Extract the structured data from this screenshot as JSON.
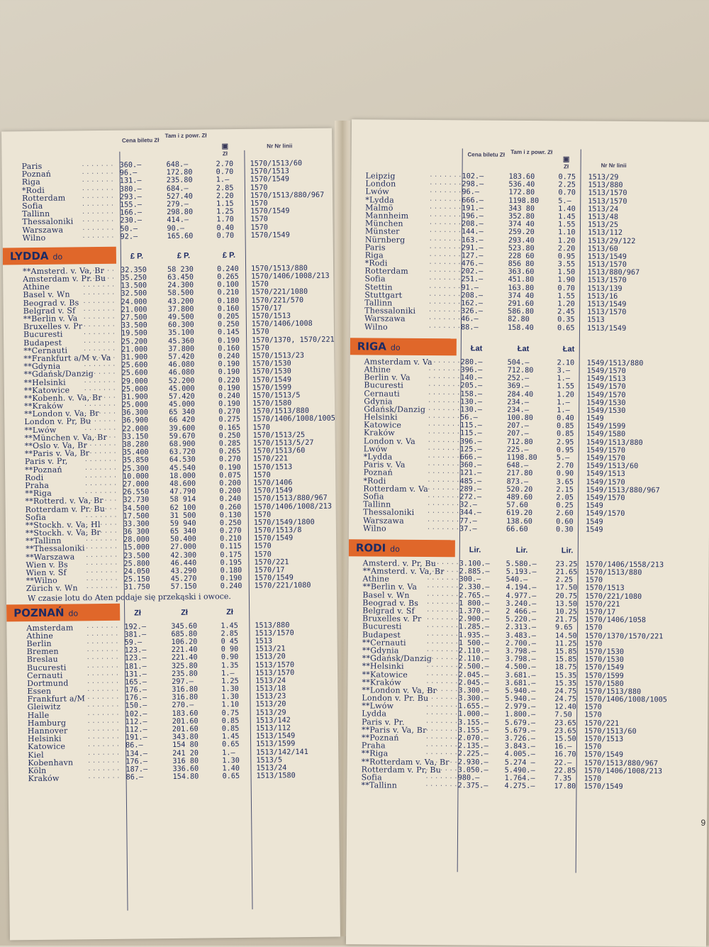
{
  "headers": {
    "price": "Cena biletu Zł",
    "round": "Tam i z powr. Zł",
    "bag": "Zł",
    "lines": "Nr Nr linii"
  },
  "note": "W czasie lotu do Aten podaje się przekąski i owoce.",
  "page_number": "9",
  "left_top": [
    [
      "Paris",
      "360.—",
      "648.—",
      "2.70",
      "1570/1513/60"
    ],
    [
      "Poznań",
      "96.—",
      "172.80",
      "0.70",
      "1570/1513"
    ],
    [
      "Riga",
      "131.—",
      "235.80",
      "1.—",
      "1570/1549"
    ],
    [
      "*Rodi",
      "380.—",
      "684.—",
      "2.85",
      "1570"
    ],
    [
      "Rotterdam",
      "293.—",
      "527.40",
      "2.20",
      "1570/1513/880/967"
    ],
    [
      "Sofia",
      "155.—",
      "279.—",
      "1.15",
      "1570"
    ],
    [
      "Tallinn",
      "166.—",
      "298.80",
      "1.25",
      "1570/1549"
    ],
    [
      "Thessaloniki",
      "230.—",
      "414.—",
      "1.70",
      "1570"
    ],
    [
      "Warszawa",
      "50.—",
      "90.—",
      "0.40",
      "1570"
    ],
    [
      "Wilno",
      "92.—",
      "165.60",
      "0.70",
      "1570/1549"
    ]
  ],
  "lydda": {
    "title": "LYDDA",
    "do": "do",
    "cur": [
      "£ P.",
      "£ P.",
      "£ P."
    ],
    "rows": [
      [
        "**Amsterd. v. Va, Br",
        "32.350",
        "58 230",
        "0.240",
        "1570/1513/880"
      ],
      [
        "Amsterdam v. Pr. Bu",
        "35.250",
        "63.450",
        "0.265",
        "1570/1406/1008/213"
      ],
      [
        "Athine",
        "13.500",
        "24.300",
        "0.100",
        "1570"
      ],
      [
        "Basel v. Wn",
        "32.500",
        "58.500",
        "0.210",
        "1570/221/1080"
      ],
      [
        "Beograd v. Bs",
        "24.000",
        "43.200",
        "0.180",
        "1570/221/570"
      ],
      [
        "Belgrad v. Sf",
        "21.000",
        "37.800",
        "0.160",
        "1570/17"
      ],
      [
        "**Berlin v. Va",
        "27.500",
        "49.500",
        "0.205",
        "1570/1513"
      ],
      [
        "Bruxelles v. Pr",
        "33.500",
        "60.300",
        "0.250",
        "1570/1406/1008"
      ],
      [
        "Bucuresti",
        "19.500",
        "35.100",
        "0.145",
        "1570"
      ],
      [
        "Budapest",
        "25.200",
        "45.360",
        "0.190",
        "1570/1370, 1570/221"
      ],
      [
        "**Cernauti",
        "21.000",
        "37.800",
        "0.160",
        "1570"
      ],
      [
        "**Frankfurt a/M v. Va",
        "31.900",
        "57.420",
        "0.240",
        "1570/1513/23"
      ],
      [
        "**Gdynia",
        "25.600",
        "46.080",
        "0.190",
        "1570/1530"
      ],
      [
        "**Gdańsk/Danzig",
        "25.600",
        "46.080",
        "0.190",
        "1570/1530"
      ],
      [
        "**Helsinki",
        "29.000",
        "52.200",
        "0.220",
        "1570/1549"
      ],
      [
        "**Katowice",
        "25.000",
        "45.000",
        "0.190",
        "1570/1599"
      ],
      [
        "**Kobenh. v. Va, Br",
        "31.900",
        "57.420",
        "0.240",
        "1570/1513/5"
      ],
      [
        "**Kraków",
        "25.000",
        "45.000",
        "0.190",
        "1570/1580"
      ],
      [
        "**London v. Va, Br",
        "36.300",
        "65 340",
        "0.270",
        "1570/1513/880"
      ],
      [
        "London v. Pr, Bu",
        "36.900",
        "66 420",
        "0.275",
        "1570/1406/1008/1005"
      ],
      [
        "**Lwów",
        "22.000",
        "39.600",
        "0.165",
        "1570"
      ],
      [
        "**München v. Va, Br",
        "33.150",
        "59.670",
        "0.250",
        "1570/1513/25"
      ],
      [
        "**Oslo v. Va, Br",
        "38.280",
        "68.900",
        "0.285",
        "1570/1513/5/27"
      ],
      [
        "**Paris v. Va, Br",
        "35.400",
        "63.720",
        "0.265",
        "1570/1513/60"
      ],
      [
        "Paris v. Pr,",
        "35.850",
        "64.530",
        "0.270",
        "1570/221"
      ],
      [
        "**Poznań",
        "25.300",
        "45.540",
        "0.190",
        "1570/1513"
      ],
      [
        "Rodi",
        "10.000",
        "18.000",
        "0.075",
        "1570"
      ],
      [
        "Praha",
        "27.000",
        "48.600",
        "0.200",
        "1570/1406"
      ],
      [
        "**Riga",
        "26.550",
        "47.790",
        "0.200",
        "1570/1549"
      ],
      [
        "**Rotterd. v. Va, Br",
        "32.730",
        "58 914",
        "0.240",
        "1570/1513/880/967"
      ],
      [
        "Rotterdam v. Pr. Bu",
        "34.500",
        "62 100",
        "0.260",
        "1570/1406/1008/213"
      ],
      [
        "Sofia",
        "17.500",
        "31 500",
        "0.130",
        "1570"
      ],
      [
        "**Stockh. v. Va, Hl",
        "33.300",
        "59 940",
        "0.250",
        "1570/1549/1800"
      ],
      [
        "**Stockh. v. Va, Br",
        "36 300",
        "65 340",
        "0.270",
        "1570/1513/8"
      ],
      [
        "**Tallinn",
        "28.000",
        "50.400",
        "0.210",
        "1570/1549"
      ],
      [
        "**Thessaloniki",
        "15.000",
        "27.000",
        "0.115",
        "1570"
      ],
      [
        "**Warszawa",
        "23.500",
        "42.300",
        "0.175",
        "1570"
      ],
      [
        "Wien v. Bs",
        "25.800",
        "46.440",
        "0.195",
        "1570/221"
      ],
      [
        "Wien v. Sf",
        "24.050",
        "43.290",
        "0.180",
        "1570/17"
      ],
      [
        "**Wilno",
        "25.150",
        "45.270",
        "0.190",
        "1570/1549"
      ],
      [
        "Zürich v. Wn",
        "31.750",
        "57.150",
        "0.240",
        "1570/221/1080"
      ]
    ]
  },
  "poznan": {
    "title": "POZNAŃ",
    "do": "do",
    "cur": [
      "Zł",
      "Zł",
      "Zł"
    ],
    "rows": [
      [
        "Amsterdam",
        "192.—",
        "345.60",
        "1.45",
        "1513/880"
      ],
      [
        "Athine",
        "381.—",
        "685.80",
        "2.85",
        "1513/1570"
      ],
      [
        "Berlin",
        "59.—",
        "106.20",
        "0 45",
        "1513"
      ],
      [
        "Bremen",
        "123.—",
        "221.40",
        "0 90",
        "1513/21"
      ],
      [
        "Breslau",
        "123.—",
        "221.40",
        "0.90",
        "1513/20"
      ],
      [
        "Bucuresti",
        "181.—",
        "325.80",
        "1.35",
        "1513/1570"
      ],
      [
        "Cernauti",
        "131.—",
        "235.80",
        "1.—",
        "1513/1570"
      ],
      [
        "Dortmund",
        "165.—",
        "297.—",
        "1.25",
        "1513/24"
      ],
      [
        "Essen",
        "176.—",
        "316.80",
        "1.30",
        "1513/18"
      ],
      [
        "Frankfurt a/M",
        "176.—",
        "316.80",
        "1.30",
        "1513/23"
      ],
      [
        "Gleiwitz",
        "150.—",
        "270.—",
        "1.10",
        "1513/20"
      ],
      [
        "Halle",
        "102.—",
        "183.60",
        "0.75",
        "1513/29"
      ],
      [
        "Hamburg",
        "112.—",
        "201.60",
        "0.85",
        "1513/142"
      ],
      [
        "Hannover",
        "112.—",
        "201.60",
        "0.85",
        "1513/112"
      ],
      [
        "Helsinki",
        "191.—",
        "343.80",
        "1.45",
        "1513/1549"
      ],
      [
        "Katowice",
        "86.—",
        "154 80",
        "0.65",
        "1513/1599"
      ],
      [
        "Kiel",
        "134.—",
        "241 20",
        "1.—",
        "1513/142/141"
      ],
      [
        "Kobenhavn",
        "176.—",
        "316 80",
        "1.30",
        "1513/5"
      ],
      [
        "Köln",
        "187.—",
        "336.60",
        "1.40",
        "1513/24"
      ],
      [
        "Kraków",
        "86.—",
        "154.80",
        "0.65",
        "1513/1580"
      ]
    ]
  },
  "right_top": [
    [
      "Leipzig",
      "102.—",
      "183.60",
      "0.75",
      "1513/29"
    ],
    [
      "London",
      "298.—",
      "536.40",
      "2.25",
      "1513/880"
    ],
    [
      "Lwów",
      "96.—",
      "172.80",
      "0.70",
      "1513/1570"
    ],
    [
      "*Lydda",
      "666.—",
      "1198.80",
      "5.—",
      "1513/1570"
    ],
    [
      "Malmö",
      "191.—",
      "343 80",
      "1.40",
      "1513/24"
    ],
    [
      "Mannheim",
      "196.—",
      "352.80",
      "1.45",
      "1513/48"
    ],
    [
      "München",
      "208.—",
      "374 40",
      "1.55",
      "1513/25"
    ],
    [
      "Münster",
      "144.—",
      "259.20",
      "1.10",
      "1513/112"
    ],
    [
      "Nürnberg",
      "163.—",
      "293.40",
      "1.20",
      "1513/29/122"
    ],
    [
      "Paris",
      "291.—",
      "523.80",
      "2.20",
      "1513/60"
    ],
    [
      "Riga",
      "127.—",
      "228 60",
      "0.95",
      "1513/1549"
    ],
    [
      "*Rodi",
      "476.—",
      "856 80",
      "3.55",
      "1513/1570"
    ],
    [
      "Rotterdam",
      "202.—",
      "363.60",
      "1.50",
      "1513/880/967"
    ],
    [
      "Sofia",
      "251.—",
      "451.80",
      "1.90",
      "1513/1570"
    ],
    [
      "Stettin",
      "91.—",
      "163.80",
      "0.70",
      "1513/139"
    ],
    [
      "Stuttgart",
      "208.—",
      "374 40",
      "1.55",
      "1513/16"
    ],
    [
      "Tallinn",
      "162.—",
      "291.60",
      "1.20",
      "1513/1549"
    ],
    [
      "Thessaloniki",
      "326.—",
      "586.80",
      "2.45",
      "1513/1570"
    ],
    [
      "Warszawa",
      "46.—",
      "82.80",
      "0.35",
      "1513"
    ],
    [
      "Wilno",
      "88.—",
      "158.40",
      "0.65",
      "1513/1549"
    ]
  ],
  "riga": {
    "title": "RIGA",
    "do": "do",
    "cur": [
      "Łat",
      "Łat",
      "Łat"
    ],
    "rows": [
      [
        "Amsterdam v. Va",
        "280.—",
        "504.—",
        "2.10",
        "1549/1513/880"
      ],
      [
        "Athine",
        "396.—",
        "712.80",
        "3.—",
        "1549/1570"
      ],
      [
        "Berlin v. Va",
        "140.—",
        "252.—",
        "1.—",
        "1549/1513"
      ],
      [
        "Bucuresti",
        "205.—",
        "369.—",
        "1.55",
        "1549/1570"
      ],
      [
        "Cernauti",
        "158.—",
        "284.40",
        "1.20",
        "1549/1570"
      ],
      [
        "Gdynia",
        "130.—",
        "234.—",
        "1.—",
        "1549/1530"
      ],
      [
        "Gdańsk/Danzig",
        "130.—",
        "234.—",
        "1.—",
        "1549/1530"
      ],
      [
        "Helsinki",
        "56.—",
        "100.80",
        "0.40",
        "1549"
      ],
      [
        "Katowice",
        "115.—",
        "207.—",
        "0.85",
        "1549/1599"
      ],
      [
        "Kraków",
        "115.—",
        "207.—",
        "0.85",
        "1549/1580"
      ],
      [
        "London v. Va",
        "396.—",
        "712.80",
        "2.95",
        "1549/1513/880"
      ],
      [
        "Lwów",
        "125.—",
        "225.—",
        "0.95",
        "1549/1570"
      ],
      [
        "*Lydda",
        "666.—",
        "1198.80",
        "5.—",
        "1549/1570"
      ],
      [
        "Paris v. Va",
        "360.—",
        "648.—",
        "2.70",
        "1549/1513/60"
      ],
      [
        "Poznań",
        "121.—",
        "217.80",
        "0.90",
        "1549/1513"
      ],
      [
        "*Rodi",
        "485.—",
        "873.—",
        "3.65",
        "1549/1570"
      ],
      [
        "Rotterdam v. Va",
        "289.—",
        "520.20",
        "2.15",
        "1549/1513/880/967"
      ],
      [
        "Sofia",
        "272.—",
        "489.60",
        "2.05",
        "1549/1570"
      ],
      [
        "Tallinn",
        "32.—",
        "57.60",
        "0.25",
        "1549"
      ],
      [
        "Thessaloniki",
        "344.—",
        "619.20",
        "2.60",
        "1549/1570"
      ],
      [
        "Warszawa",
        "77.—",
        "138.60",
        "0.60",
        "1549"
      ],
      [
        "Wilno",
        "37.—",
        "66.60",
        "0.30",
        "1549"
      ]
    ]
  },
  "rodi": {
    "title": "RODI",
    "do": "do",
    "cur": [
      "Lir.",
      "Lir.",
      "Lir."
    ],
    "rows": [
      [
        "Amsterd. v. Pr, Bu",
        "3.100.—",
        "5.580.—",
        "23.25",
        "1570/1406/1558/213"
      ],
      [
        "**Amsterd. v. Va, Br",
        "2.885.—",
        "5.193.—",
        "21.65",
        "1570/1513/880"
      ],
      [
        "Athine",
        "300.—",
        "540.—",
        "2.25",
        "1570"
      ],
      [
        "**Berlin v. Va",
        "2.330.—",
        "4.194.—",
        "17.50",
        "1570/1513"
      ],
      [
        "Basel v. Wn",
        "2.765.—",
        "4.977.—",
        "20.75",
        "1570/221/1080"
      ],
      [
        "Beograd v. Bs",
        "1 800.—",
        "3.240.—",
        "13.50",
        "1570/221"
      ],
      [
        "Belgrad v. Sf",
        "1.370.—",
        "2 466.—",
        "10.25",
        "1570/17"
      ],
      [
        "Bruxelles v. Pr",
        "2.900.—",
        "5.220.—",
        "21.75",
        "1570/1406/1058"
      ],
      [
        "Bucuresti",
        "1.285.—",
        "2.313.—",
        "9.65",
        "1570"
      ],
      [
        "Budapest",
        "1.935.—",
        "3.483.—",
        "14.50",
        "1570/1370/1570/221"
      ],
      [
        "**Cernauti",
        "1 500.—",
        "2.700.—",
        "11.25",
        "1570"
      ],
      [
        "**Gdynia",
        "2.110.—",
        "3.798.—",
        "15.85",
        "1570/1530"
      ],
      [
        "**Gdańsk/Danzig",
        "2.110.—",
        "3.798.—",
        "15.85",
        "1570/1530"
      ],
      [
        "**Helsinki",
        "2.500.—",
        "4.500.—",
        "18.75",
        "1570/1549"
      ],
      [
        "**Katowice",
        "2.045.—",
        "3.681.—",
        "15.35",
        "1570/1599"
      ],
      [
        "**Kraków",
        "2.045.—",
        "3.681.—",
        "15.35",
        "1570/1580"
      ],
      [
        "**London v. Va, Br",
        "3.300.—",
        "5.940.—",
        "24.75",
        "1570/1513/880"
      ],
      [
        "London v. Pr. Bu",
        "3.300.—",
        "5.940.—",
        "24.75",
        "1570/1406/1008/1005"
      ],
      [
        "**Lwów",
        "1.655.—",
        "2.979.—",
        "12.40",
        "1570"
      ],
      [
        "Lydda",
        "1.000.—",
        "1.800.—",
        "7.50",
        "1570"
      ],
      [
        "Paris v. Pr.",
        "3.155.—",
        "5.679.—",
        "23.65",
        "1570/221"
      ],
      [
        "**Paris v. Va, Br",
        "3.155.—",
        "5.679.—",
        "23.65",
        "1570/1513/60"
      ],
      [
        "**Poznań",
        "2.070.—",
        "3.726.—",
        "15.50",
        "1570/1513"
      ],
      [
        "Praha",
        "2.135.—",
        "3.843.—",
        "16.—",
        "1570"
      ],
      [
        "**Riga",
        "2.225.—",
        "4.005.—",
        "16.70",
        "1570/1549"
      ],
      [
        "**Rotterdam v. Va, Br",
        "2.930.—",
        "5.274 —",
        "22.—",
        "1570/1513/880/967"
      ],
      [
        "Rotterdam v. Pr, Bu",
        "3.050.—",
        "5.490.—",
        "22.85",
        "1570/1406/1008/213"
      ],
      [
        "Sofia",
        "980.—",
        "1.764.—",
        "7.35",
        "1570"
      ],
      [
        "**Tallinn",
        "2.375.—",
        "4.275.—",
        "17.80",
        "1570/1549"
      ]
    ]
  }
}
